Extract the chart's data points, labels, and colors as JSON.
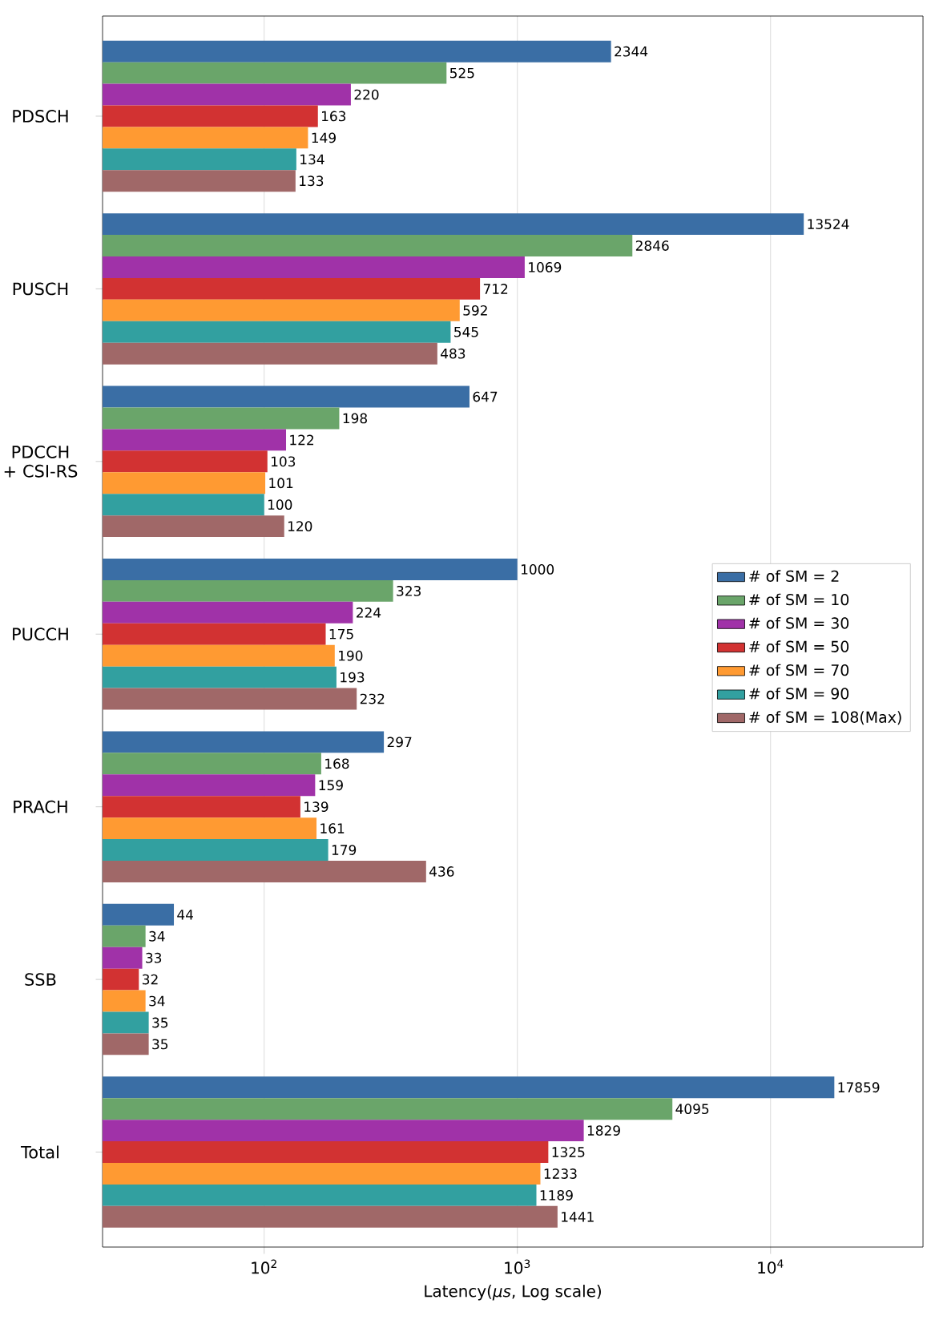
{
  "chart_data": {
    "type": "bar",
    "orientation": "horizontal",
    "xlabel": "Latency(*μs*, Log scale)",
    "categories": [
      "PDSCH",
      "PUSCH",
      "PDCCH + CSI-RS",
      "PUCCH",
      "PRACH",
      "SSB",
      "Total"
    ],
    "series": [
      {
        "name": "# of SM = 2",
        "color": "#3a6ea5",
        "values": [
          2344,
          13524,
          647,
          1000,
          297,
          44,
          17859
        ]
      },
      {
        "name": "# of SM = 10",
        "color": "#6aa56a",
        "values": [
          525,
          2846,
          198,
          323,
          168,
          34,
          4095
        ]
      },
      {
        "name": "# of SM = 30",
        "color": "#a032a8",
        "values": [
          220,
          1069,
          122,
          224,
          159,
          33,
          1829
        ]
      },
      {
        "name": "# of SM = 50",
        "color": "#d23232",
        "values": [
          163,
          712,
          103,
          175,
          139,
          32,
          1325
        ]
      },
      {
        "name": "# of SM = 70",
        "color": "#ff9a32",
        "values": [
          149,
          592,
          101,
          190,
          161,
          34,
          1233
        ]
      },
      {
        "name": "# of SM = 90",
        "color": "#32a0a0",
        "values": [
          134,
          545,
          100,
          193,
          179,
          35,
          1189
        ]
      },
      {
        "name": "# of SM = 108(Max)",
        "color": "#a06868",
        "values": [
          133,
          483,
          120,
          232,
          436,
          35,
          1441
        ]
      }
    ],
    "log": "x",
    "xlim": [
      23,
      40000
    ],
    "xticks": [
      {
        "value": 100,
        "label": "10$^{2}$"
      },
      {
        "value": 1000,
        "label": "10$^{3}$"
      },
      {
        "value": 10000,
        "label": "10$^{4}$"
      }
    ],
    "grid": "x",
    "legend": "right",
    "data_labels": true
  }
}
